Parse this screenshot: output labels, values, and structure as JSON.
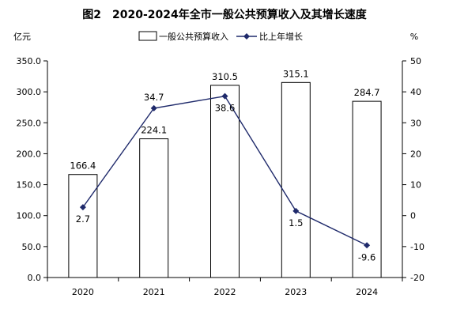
{
  "chart_data": {
    "type": "bar",
    "title": "图2　2020-2024年全市一般公共预算收入及其增长速度",
    "left_unit": "亿元",
    "right_unit": "%",
    "categories": [
      "2020",
      "2021",
      "2022",
      "2023",
      "2024"
    ],
    "series": [
      {
        "name": "一般公共预算收入",
        "type": "bar",
        "axis": "left",
        "values": [
          166.4,
          224.1,
          310.5,
          315.1,
          284.7
        ],
        "labels": [
          "166.4",
          "224.1",
          "310.5",
          "315.1",
          "284.7"
        ]
      },
      {
        "name": "比上年增长",
        "type": "line",
        "axis": "right",
        "values": [
          2.7,
          34.7,
          38.6,
          1.5,
          -9.6
        ],
        "labels": [
          "2.7",
          "34.7",
          "38.6",
          "1.5",
          "-9.6"
        ]
      }
    ],
    "y_left": {
      "min": 0,
      "max": 350,
      "step": 50,
      "ticks": [
        "0.0",
        "50.0",
        "100.0",
        "150.0",
        "200.0",
        "250.0",
        "300.0",
        "350.0"
      ]
    },
    "y_right": {
      "min": -20,
      "max": 50,
      "step": 10,
      "ticks": [
        "-20",
        "-10",
        "0",
        "10",
        "20",
        "30",
        "40",
        "50"
      ]
    },
    "legend_position": "top-center",
    "grid": false,
    "colors": {
      "bar_fill": "#ffffff",
      "bar_stroke": "#000000",
      "line": "#1f2a6b",
      "marker": "#1f2a6b",
      "axis": "#000000"
    }
  }
}
